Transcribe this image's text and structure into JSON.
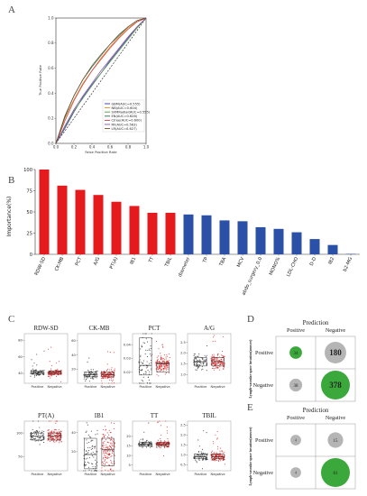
{
  "panels": {
    "A": "A",
    "B": "B",
    "C": "C",
    "D": "D",
    "E": "E"
  },
  "roc": {
    "xlabel": "False Positive Rate",
    "ylabel": "True Positive Rate",
    "ticks": [
      "0.0",
      "0.2",
      "0.4",
      "0.6",
      "0.8",
      "1.0"
    ],
    "legend": [
      {
        "label": "GBM(AUC=0.555)",
        "color": "#3a3aa0"
      },
      {
        "label": "NB(AUC=0.604)",
        "color": "#e08a1e"
      },
      {
        "label": "SVMRadial(AUC=0.555)",
        "color": "#4b9b3a"
      },
      {
        "label": "EN(AUC=0.628)",
        "color": "#2b6a4a"
      },
      {
        "label": "Ctree(AUC=0.600)",
        "color": "#cc3a3a"
      },
      {
        "label": "RF(AUC=0.563)",
        "color": "#8a4fb0"
      },
      {
        "label": "LR(AUC=0.627)",
        "color": "#6b4a2a"
      }
    ]
  },
  "chart_data": [
    {
      "type": "line",
      "title": "",
      "xlabel": "False Positive Rate",
      "ylabel": "True Positive Rate",
      "xlim": [
        0,
        1
      ],
      "ylim": [
        0,
        1
      ],
      "series": [
        {
          "name": "GBM(AUC=0.555)",
          "x": [
            0,
            0.1,
            0.2,
            0.3,
            0.4,
            0.5,
            0.6,
            0.7,
            0.8,
            0.9,
            1
          ],
          "y": [
            0,
            0.12,
            0.25,
            0.37,
            0.47,
            0.56,
            0.66,
            0.75,
            0.84,
            0.93,
            1
          ]
        },
        {
          "name": "NB(AUC=0.604)",
          "x": [
            0,
            0.1,
            0.2,
            0.3,
            0.4,
            0.5,
            0.6,
            0.7,
            0.8,
            0.9,
            1
          ],
          "y": [
            0,
            0.2,
            0.35,
            0.48,
            0.58,
            0.68,
            0.77,
            0.85,
            0.92,
            0.97,
            1
          ]
        },
        {
          "name": "SVMRadial(AUC=0.555)",
          "x": [
            0,
            0.1,
            0.2,
            0.3,
            0.4,
            0.5,
            0.6,
            0.7,
            0.8,
            0.9,
            1
          ],
          "y": [
            0,
            0.13,
            0.26,
            0.36,
            0.46,
            0.56,
            0.65,
            0.74,
            0.83,
            0.92,
            1
          ]
        },
        {
          "name": "EN(AUC=0.628)",
          "x": [
            0,
            0.1,
            0.2,
            0.3,
            0.4,
            0.5,
            0.6,
            0.7,
            0.8,
            0.9,
            1
          ],
          "y": [
            0,
            0.22,
            0.38,
            0.51,
            0.62,
            0.71,
            0.79,
            0.87,
            0.93,
            0.98,
            1
          ]
        },
        {
          "name": "Ctree(AUC=0.600)",
          "x": [
            0,
            0.1,
            0.2,
            0.3,
            0.4,
            0.5,
            0.6,
            0.7,
            0.8,
            0.9,
            1
          ],
          "y": [
            0,
            0.18,
            0.34,
            0.47,
            0.58,
            0.67,
            0.76,
            0.84,
            0.91,
            0.97,
            1
          ]
        },
        {
          "name": "RF(AUC=0.563)",
          "x": [
            0,
            0.1,
            0.2,
            0.3,
            0.4,
            0.5,
            0.6,
            0.7,
            0.8,
            0.9,
            1
          ],
          "y": [
            0,
            0.14,
            0.27,
            0.38,
            0.48,
            0.58,
            0.67,
            0.76,
            0.85,
            0.93,
            1
          ]
        },
        {
          "name": "LR(AUC=0.627)",
          "x": [
            0,
            0.1,
            0.2,
            0.3,
            0.4,
            0.5,
            0.6,
            0.7,
            0.8,
            0.9,
            1
          ],
          "y": [
            0,
            0.21,
            0.38,
            0.51,
            0.61,
            0.7,
            0.79,
            0.86,
            0.93,
            0.98,
            1
          ]
        }
      ],
      "grid": false,
      "legend_position": "bottom-right"
    },
    {
      "type": "bar",
      "title": "",
      "ylabel": "Importance(%)",
      "ylim": [
        0,
        100
      ],
      "yticks": [
        0,
        25,
        50,
        75,
        100
      ],
      "categories": [
        "RDW-SD",
        "CK-MB",
        "PCT",
        "A/G",
        "PT(A)",
        "IB1",
        "TT",
        "TBIL",
        "diameter",
        "TP",
        "TBA",
        "MCV",
        "abdo_surgery_0.0",
        "MONO%",
        "LDL-CHO",
        "D-D",
        "IB2",
        "b2-MG"
      ],
      "values": [
        100,
        81,
        76,
        70,
        62,
        57,
        49,
        49,
        47,
        46,
        40,
        39,
        32,
        30,
        26,
        18,
        11,
        0.5
      ],
      "colors": [
        "#e41a1c",
        "#e41a1c",
        "#e41a1c",
        "#e41a1c",
        "#e41a1c",
        "#e41a1c",
        "#e41a1c",
        "#e41a1c",
        "#2b50a8",
        "#2b50a8",
        "#2b50a8",
        "#2b50a8",
        "#2b50a8",
        "#2b50a8",
        "#2b50a8",
        "#2b50a8",
        "#2b50a8",
        "#2b50a8"
      ],
      "grid": false
    },
    {
      "type": "scatter",
      "title": "",
      "panels": [
        {
          "name": "RDW-SD",
          "yticks": [
            "40",
            "60",
            "80"
          ],
          "ylim": [
            28,
            88
          ],
          "pos_median": 41,
          "neg_median": 41,
          "pos_q": [
            39,
            43
          ],
          "neg_q": [
            39,
            43
          ]
        },
        {
          "name": "CK-MB",
          "yticks": [
            "20",
            "40",
            "60"
          ],
          "ylim": [
            0,
            70
          ],
          "pos_median": 12,
          "neg_median": 12,
          "pos_q": [
            9,
            16
          ],
          "neg_q": [
            9,
            16
          ]
        },
        {
          "name": "PCT",
          "yticks": [
            "0.02",
            "0.03",
            "0.04"
          ],
          "ylim": [
            0.012,
            0.048
          ],
          "pos_median": 0.025,
          "neg_median": 0.026,
          "pos_q": [
            0.018,
            0.045
          ],
          "neg_q": [
            0.02,
            0.027
          ]
        },
        {
          "name": "A/G",
          "yticks": [
            "1.0",
            "1.5",
            "2.0",
            "2.5"
          ],
          "ylim": [
            0.6,
            2.9
          ],
          "pos_median": 1.6,
          "neg_median": 1.6,
          "pos_q": [
            1.4,
            1.8
          ],
          "neg_q": [
            1.4,
            1.8
          ]
        },
        {
          "name": "PT(A)",
          "yticks": [
            "50",
            "100"
          ],
          "ylim": [
            20,
            125
          ],
          "pos_median": 93,
          "neg_median": 93,
          "pos_q": [
            85,
            100
          ],
          "neg_q": [
            85,
            100
          ]
        },
        {
          "name": "IB1",
          "yticks": [
            "20",
            "40"
          ],
          "ylim": [
            0,
            52
          ],
          "pos_median": 17,
          "neg_median": 22,
          "pos_q": [
            2,
            34
          ],
          "neg_q": [
            5,
            34
          ]
        },
        {
          "name": "TT",
          "yticks": [
            "5",
            "10",
            "15",
            "20"
          ],
          "ylim": [
            2,
            28
          ],
          "pos_median": 16,
          "neg_median": 16,
          "pos_q": [
            15,
            17
          ],
          "neg_q": [
            15,
            17
          ]
        },
        {
          "name": "TBIL",
          "yticks": [
            "0.5",
            "1.0",
            "1.5",
            "2.0",
            "2.5"
          ],
          "ylim": [
            0.2,
            2.7
          ],
          "pos_median": 0.9,
          "neg_median": 0.9,
          "pos_q": [
            0.8,
            1.05
          ],
          "neg_q": [
            0.8,
            1.05
          ]
        }
      ],
      "xcategories": [
        "Positive",
        "Negative"
      ],
      "series_colors": {
        "Positive": "#222222",
        "Negative": "#d62020"
      }
    },
    {
      "type": "table",
      "title": "Prediction",
      "columns": [
        "Positive",
        "Negative"
      ],
      "rows": [
        "Positive",
        "Negative"
      ],
      "row_axis_label": "Lymph-vascular space invasion(answer)",
      "values": [
        [
          34,
          180
        ],
        [
          38,
          378
        ]
      ],
      "cell_colors": [
        [
          "#3aa83a",
          "#b5b5b5"
        ],
        [
          "#b5b5b5",
          "#3aa83a"
        ]
      ]
    },
    {
      "type": "table",
      "title": "Prediction",
      "columns": [
        "Positive",
        "Negative"
      ],
      "rows": [
        "Positive",
        "Negative"
      ],
      "row_axis_label": "Lymph-vascular space invasion(answer)",
      "values": [
        [
          4,
          15
        ],
        [
          4,
          81
        ]
      ],
      "cell_colors": [
        [
          "#b5b5b5",
          "#b5b5b5"
        ],
        [
          "#b5b5b5",
          "#3aa83a"
        ]
      ]
    }
  ]
}
